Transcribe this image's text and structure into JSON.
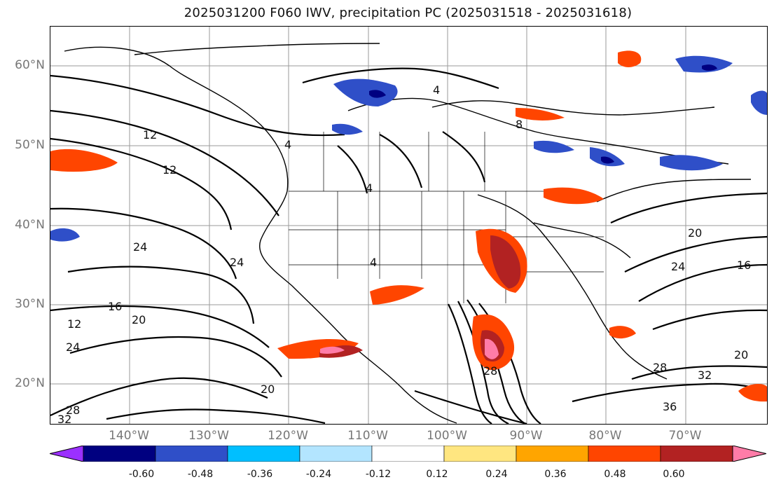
{
  "title": "2025031200 F060 IWV, precipitation PC (2025031518 - 2025031618)",
  "latitude_labels": [
    "60°N",
    "50°N",
    "40°N",
    "30°N",
    "20°N"
  ],
  "longitude_labels": [
    "140°W",
    "130°W",
    "120°W",
    "110°W",
    "100°W",
    "90°W",
    "80°W",
    "70°W"
  ],
  "colorbar": {
    "ticks": [
      "-0.60",
      "-0.48",
      "-0.36",
      "-0.24",
      "-0.12",
      "0.12",
      "0.24",
      "0.36",
      "0.48",
      "0.60"
    ],
    "colors": [
      "#9b30ff",
      "#000080",
      "#2f4fc8",
      "#00bfff",
      "#b3e5ff",
      "#ffffff",
      "#ffe680",
      "#ffa500",
      "#ff4500",
      "#b22222",
      "#ff7ca8"
    ]
  },
  "contour_labels": [
    "12",
    "12",
    "24",
    "24",
    "16",
    "12",
    "20",
    "24",
    "20",
    "28",
    "32",
    "4",
    "4",
    "4",
    "4",
    "8",
    "20",
    "24",
    "16",
    "20",
    "28",
    "32",
    "36",
    "28"
  ]
}
